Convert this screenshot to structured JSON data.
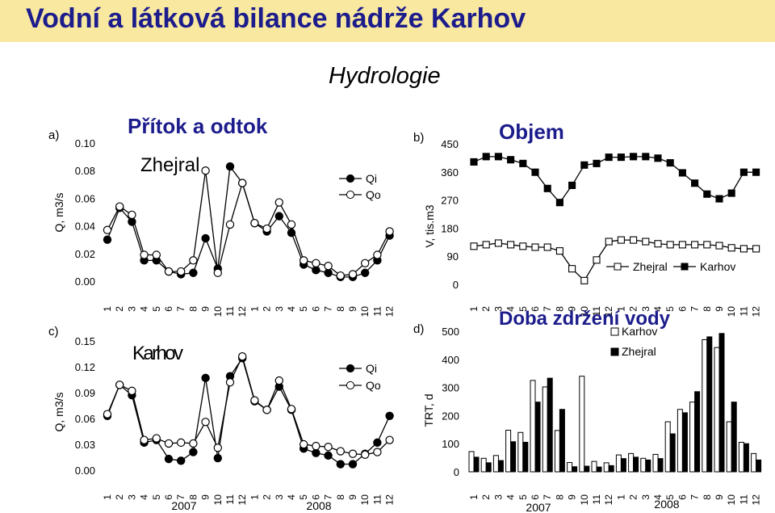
{
  "slide_title": "Vodní a látková bilance nádrže Karhov",
  "section_title": "Hydrologie",
  "chart_data": [
    {
      "id": "a",
      "type": "line",
      "panel_label": "a)",
      "title": "Přítok a odtok",
      "inner_label": "Zhejral",
      "ylabel": "Q, m3/s",
      "ylim": [
        0,
        0.1
      ],
      "yticks": [
        "0.00",
        "0.02",
        "0.04",
        "0.06",
        "0.08",
        "0.10"
      ],
      "categories": [
        "1",
        "2",
        "3",
        "4",
        "5",
        "6",
        "7",
        "8",
        "9",
        "10",
        "11",
        "12",
        "1",
        "2",
        "3",
        "4",
        "5",
        "6",
        "7",
        "8",
        "9",
        "10",
        "11",
        "12"
      ],
      "series": [
        {
          "name": "Qi",
          "marker": "filled",
          "values": [
            0.03,
            0.053,
            0.043,
            0.015,
            0.015,
            0.007,
            0.005,
            0.006,
            0.031,
            0.009,
            0.083,
            0.071,
            0.042,
            0.036,
            0.047,
            0.035,
            0.012,
            0.008,
            0.006,
            0.003,
            0.003,
            0.006,
            0.015,
            0.033
          ]
        },
        {
          "name": "Qo",
          "marker": "open",
          "values": [
            0.037,
            0.054,
            0.048,
            0.019,
            0.019,
            0.007,
            0.007,
            0.015,
            0.08,
            0.006,
            0.041,
            0.071,
            0.042,
            0.038,
            0.057,
            0.041,
            0.015,
            0.013,
            0.011,
            0.004,
            0.005,
            0.013,
            0.019,
            0.036
          ]
        }
      ]
    },
    {
      "id": "b",
      "type": "line",
      "panel_label": "b)",
      "title": "Objem",
      "ylabel": "V, tis.m3",
      "ylim": [
        0,
        450
      ],
      "yticks": [
        "0",
        "90",
        "180",
        "270",
        "360",
        "450"
      ],
      "categories": [
        "1",
        "2",
        "3",
        "4",
        "5",
        "6",
        "7",
        "8",
        "9",
        "10",
        "11",
        "12",
        "1",
        "2",
        "3",
        "4",
        "5",
        "6",
        "7",
        "8",
        "9",
        "10",
        "11",
        "12"
      ],
      "series": [
        {
          "name": "Zhejral",
          "marker": "open-square",
          "values": [
            122,
            127,
            132,
            127,
            122,
            119,
            119,
            107,
            50,
            12,
            78,
            137,
            142,
            142,
            137,
            130,
            127,
            127,
            127,
            127,
            124,
            117,
            114,
            114
          ]
        },
        {
          "name": "Karhov",
          "marker": "filled-square",
          "values": [
            392,
            409,
            409,
            399,
            387,
            359,
            307,
            262,
            317,
            382,
            387,
            407,
            407,
            409,
            409,
            404,
            389,
            357,
            324,
            289,
            274,
            292,
            359,
            359
          ]
        }
      ]
    },
    {
      "id": "c",
      "type": "line",
      "panel_label": "c)",
      "inner_label": "Karhov",
      "ylabel": "Q, m3/s",
      "ylim": [
        0,
        0.15
      ],
      "yticks": [
        "0.00",
        "0.03",
        "0.06",
        "0.09",
        "0.12",
        "0.15"
      ],
      "categories": [
        "1",
        "2",
        "3",
        "4",
        "5",
        "6",
        "7",
        "8",
        "9",
        "10",
        "11",
        "12",
        "1",
        "2",
        "3",
        "4",
        "5",
        "6",
        "7",
        "8",
        "9",
        "10",
        "11",
        "12"
      ],
      "series": [
        {
          "name": "Qi",
          "marker": "filled",
          "values": [
            0.063,
            0.099,
            0.087,
            0.032,
            0.035,
            0.013,
            0.011,
            0.021,
            0.107,
            0.014,
            0.109,
            0.13,
            0.08,
            0.07,
            0.097,
            0.07,
            0.025,
            0.02,
            0.017,
            0.007,
            0.007,
            0.019,
            0.032,
            0.063
          ]
        },
        {
          "name": "Qo",
          "marker": "open",
          "values": [
            0.065,
            0.099,
            0.092,
            0.035,
            0.037,
            0.031,
            0.032,
            0.031,
            0.056,
            0.026,
            0.102,
            0.132,
            0.081,
            0.07,
            0.104,
            0.071,
            0.03,
            0.028,
            0.027,
            0.022,
            0.019,
            0.018,
            0.021,
            0.035
          ]
        }
      ]
    },
    {
      "id": "d",
      "type": "bar",
      "panel_label": "d)",
      "title": "Doba zdržení vody",
      "ylabel": "TRT, d",
      "ylim": [
        0,
        500
      ],
      "yticks": [
        "0",
        "100",
        "200",
        "300",
        "400",
        "500"
      ],
      "categories": [
        "1",
        "2",
        "3",
        "4",
        "5",
        "6",
        "7",
        "8",
        "9",
        "10",
        "11",
        "12",
        "1",
        "2",
        "3",
        "4",
        "5",
        "6",
        "7",
        "8",
        "9",
        "10",
        "11",
        "12"
      ],
      "series": [
        {
          "name": "Karhov",
          "fill": "open",
          "values": [
            72,
            48,
            58,
            148,
            140,
            325,
            302,
            147,
            33,
            340,
            37,
            32,
            60,
            65,
            48,
            62,
            178,
            222,
            248,
            470,
            442,
            178,
            105,
            65
          ]
        },
        {
          "name": "Zhejral",
          "fill": "filled",
          "values": [
            52,
            32,
            40,
            107,
            105,
            248,
            333,
            222,
            18,
            20,
            17,
            22,
            47,
            52,
            42,
            47,
            135,
            210,
            285,
            480,
            492,
            248,
            100,
            42
          ]
        }
      ],
      "years": [
        "2007",
        "2008"
      ]
    }
  ],
  "colors": {
    "title_band": "#f8e8a0",
    "title_text": "#1c1c8c",
    "ink": "#000000"
  }
}
